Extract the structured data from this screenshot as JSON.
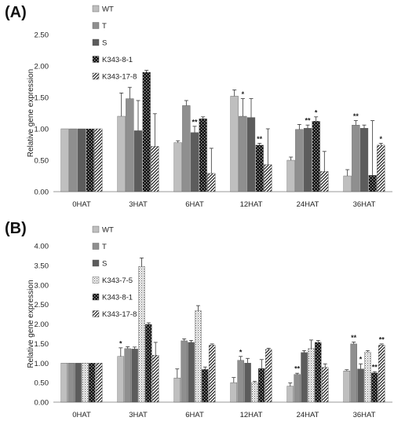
{
  "chart_data": [
    {
      "panel_label": "(A)",
      "type": "bar",
      "ylabel": "Relative gene expression",
      "xlabel": "",
      "ylim": [
        0,
        2.5
      ],
      "yticks": [
        "0.00",
        "0.50",
        "1.00",
        "1.50",
        "2.00",
        "2.50"
      ],
      "categories": [
        "0HAT",
        "3HAT",
        "6HAT",
        "12HAT",
        "24HAT",
        "36HAT"
      ],
      "legend_position": "top-left",
      "series": [
        {
          "name": "WT",
          "pattern": "light",
          "values": [
            1.0,
            1.2,
            0.78,
            1.52,
            0.5,
            0.25
          ],
          "errors": [
            0,
            0.37,
            0.03,
            0.1,
            0.05,
            0.1
          ],
          "stars": [
            "",
            "",
            "",
            "",
            "",
            ""
          ]
        },
        {
          "name": "T",
          "pattern": "mid",
          "values": [
            1.0,
            1.48,
            1.37,
            1.2,
            0.99,
            1.06
          ],
          "errors": [
            0,
            0.18,
            0.08,
            0.28,
            0.08,
            0.07
          ],
          "stars": [
            "",
            "",
            "",
            "*",
            "",
            "**"
          ]
        },
        {
          "name": "S",
          "pattern": "dark",
          "values": [
            1.0,
            0.97,
            0.94,
            1.18,
            1.01,
            1.01
          ],
          "errors": [
            0,
            0.48,
            0.1,
            0.3,
            0.05,
            0.05
          ],
          "stars": [
            "",
            "",
            "**",
            "",
            "**",
            ""
          ]
        },
        {
          "name": "K343-8-1",
          "pattern": "check",
          "values": [
            1.0,
            1.9,
            1.16,
            0.74,
            1.12,
            0.26
          ],
          "errors": [
            0,
            0.03,
            0.03,
            0.03,
            0.07,
            0.87
          ],
          "stars": [
            "",
            "",
            "",
            "**",
            "*",
            ""
          ]
        },
        {
          "name": "K343-17-8",
          "pattern": "diag",
          "values": [
            1.0,
            0.72,
            0.29,
            0.43,
            0.32,
            0.74
          ],
          "errors": [
            0,
            0.52,
            0.4,
            0.57,
            0.32,
            0.03
          ],
          "stars": [
            "",
            "",
            "",
            "",
            "",
            "*"
          ]
        }
      ]
    },
    {
      "panel_label": "(B)",
      "type": "bar",
      "ylabel": "Relative gene expression",
      "xlabel": "",
      "ylim": [
        0,
        4.0
      ],
      "yticks": [
        "0.00",
        "0.50",
        "1.00",
        "1.50",
        "2.00",
        "2.50",
        "3.00",
        "3.50",
        "4.00"
      ],
      "categories": [
        "0HAT",
        "3HAT",
        "6HAT",
        "12HAT",
        "24HAT",
        "36HAT"
      ],
      "legend_position": "top-left",
      "series": [
        {
          "name": "WT",
          "pattern": "light",
          "values": [
            1.0,
            1.17,
            0.62,
            0.5,
            0.41,
            0.8
          ],
          "errors": [
            0,
            0.22,
            0.23,
            0.13,
            0.08,
            0.03
          ],
          "stars": [
            "",
            "*",
            "",
            "",
            "",
            ""
          ]
        },
        {
          "name": "T",
          "pattern": "mid",
          "values": [
            1.0,
            1.37,
            1.57,
            1.07,
            0.71,
            1.49
          ],
          "errors": [
            0,
            0.05,
            0.05,
            0.1,
            0.03,
            0.05
          ],
          "stars": [
            "",
            "",
            "",
            "*",
            "**",
            "**"
          ]
        },
        {
          "name": "S",
          "pattern": "dark",
          "values": [
            1.0,
            1.36,
            1.53,
            1.0,
            1.27,
            0.85
          ],
          "errors": [
            0,
            0.05,
            0.05,
            0.12,
            0.05,
            0.13
          ],
          "stars": [
            "",
            "",
            "",
            "",
            "",
            "*"
          ]
        },
        {
          "name": "K343-7-5",
          "pattern": "dots",
          "values": [
            1.0,
            3.47,
            2.34,
            0.5,
            1.37,
            1.28
          ],
          "errors": [
            0,
            0.22,
            0.13,
            0.03,
            0.22,
            0.04
          ],
          "stars": [
            "",
            "",
            "",
            "",
            "",
            ""
          ]
        },
        {
          "name": "K343-8-1",
          "pattern": "check",
          "values": [
            1.0,
            1.99,
            0.84,
            0.86,
            1.53,
            0.75
          ],
          "errors": [
            0,
            0.04,
            0.06,
            0.23,
            0.05,
            0.03
          ],
          "stars": [
            "",
            "",
            "",
            "",
            "",
            "**"
          ]
        },
        {
          "name": "K343-17-8",
          "pattern": "diag",
          "values": [
            1.0,
            1.2,
            1.46,
            1.35,
            0.89,
            1.46
          ],
          "errors": [
            0,
            0.33,
            0.03,
            0.03,
            0.09,
            0.03
          ],
          "stars": [
            "",
            "",
            "",
            "",
            "",
            "**"
          ]
        }
      ]
    }
  ]
}
